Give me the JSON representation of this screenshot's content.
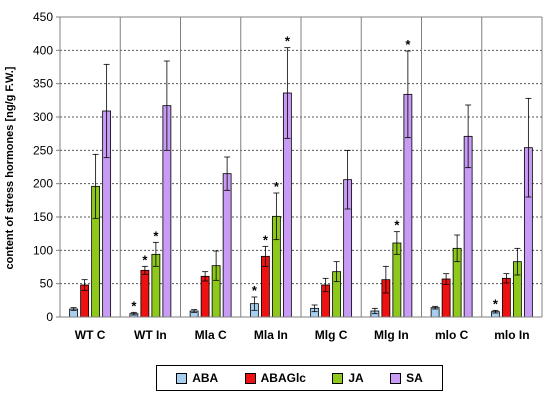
{
  "chart_data": {
    "type": "bar",
    "ylabel": "content of stress hormones [ng/g F.W.]",
    "ylim": [
      0,
      450
    ],
    "yticks": [
      0,
      50,
      100,
      150,
      200,
      250,
      300,
      350,
      400,
      450
    ],
    "grid": "horizontal dotted",
    "legend_position": "bottom",
    "categories": [
      "WT C",
      "WT In",
      "Mla C",
      "Mla In",
      "Mlg C",
      "Mlg In",
      "mlo C",
      "mlo In"
    ],
    "series": [
      {
        "name": "ABA",
        "color": "#a8cff0",
        "values": [
          12,
          5,
          9,
          20,
          13,
          9,
          14,
          8
        ],
        "errors": [
          2,
          2,
          2,
          10,
          5,
          4,
          2,
          2
        ],
        "significant": [
          false,
          true,
          false,
          true,
          false,
          false,
          false,
          true
        ]
      },
      {
        "name": "ABAGlc",
        "color": "#ee1111",
        "values": [
          48,
          70,
          61,
          91,
          48,
          56,
          57,
          58
        ],
        "errors": [
          8,
          6,
          7,
          15,
          10,
          20,
          8,
          7
        ],
        "significant": [
          false,
          true,
          false,
          true,
          false,
          false,
          false,
          false
        ]
      },
      {
        "name": "JA",
        "color": "#8fc81c",
        "values": [
          196,
          94,
          77,
          151,
          68,
          111,
          103,
          83
        ],
        "errors": [
          48,
          18,
          22,
          35,
          15,
          17,
          20,
          20
        ],
        "significant": [
          false,
          true,
          false,
          true,
          false,
          true,
          false,
          false
        ]
      },
      {
        "name": "SA",
        "color": "#c89bf4",
        "values": [
          309,
          317,
          215,
          336,
          206,
          334,
          271,
          254
        ],
        "errors": [
          70,
          67,
          25,
          68,
          44,
          65,
          47,
          74
        ],
        "significant": [
          false,
          false,
          false,
          true,
          false,
          true,
          false,
          false
        ]
      }
    ],
    "significance_marker": "*"
  }
}
